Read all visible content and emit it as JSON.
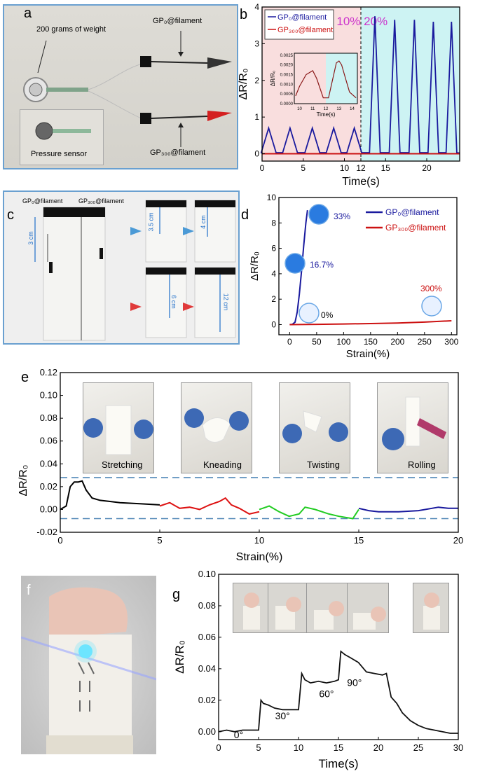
{
  "panel_a": {
    "letter": "a",
    "weight_label": "200 grams of weight",
    "top_label": "GP₀@filament",
    "bottom_label": "GP₃₀₀@filament",
    "inset_label": "Pressure sensor"
  },
  "panel_c": {
    "letter": "c",
    "left_label": "GP₀@filament",
    "right_label": "GP₃₀₀@filament",
    "len_3": "3 cm",
    "len_35": "3.5 cm",
    "len_4": "4 cm",
    "len_6": "6 cm",
    "len_12": "12 cm"
  },
  "panel_f": {
    "letter": "f"
  },
  "chart_data": [
    {
      "id": "b",
      "letter": "b",
      "type": "line",
      "xlabel": "Time(s)",
      "ylabel": "ΔR/R₀",
      "xlim": [
        0,
        24
      ],
      "ylim": [
        -0.2,
        4.0
      ],
      "x_ticks": [
        "0",
        "5",
        "10",
        "12",
        "15",
        "20"
      ],
      "y_ticks": [
        "0",
        "1",
        "2",
        "3",
        "4"
      ],
      "regions": [
        {
          "label": "10%",
          "range": [
            0,
            12
          ],
          "color": "#f9dede"
        },
        {
          "label": "20%",
          "range": [
            12,
            24
          ],
          "color": "#cdf3f3"
        }
      ],
      "peak_times": [
        0.8,
        3.4,
        6.1,
        8.7,
        11.2,
        13.7,
        16.1,
        18.5,
        20.8,
        23.0
      ],
      "peak_values": [
        0.7,
        0.7,
        0.7,
        0.7,
        0.7,
        3.75,
        3.65,
        3.65,
        3.6,
        3.6
      ],
      "series": [
        {
          "name": "GP₀@filament",
          "color": "#1a1a9e"
        },
        {
          "name": "GP₃₀₀@filament",
          "color": "#cc1111"
        }
      ],
      "inset": {
        "xlabel": "Time(s)",
        "ylabel": "ΔR/R₀",
        "x_ticks": [
          "10",
          "11",
          "12",
          "13",
          "14"
        ],
        "y_ticks": [
          "0.0000",
          "0.0005",
          "0.0010",
          "0.0015",
          "0.0020",
          "0.0025"
        ],
        "xlim": [
          9.6,
          14.4
        ],
        "ylim": [
          0,
          0.0026
        ],
        "x": [
          9.7,
          10.0,
          10.5,
          11.0,
          11.3,
          11.8,
          12.2,
          12.5,
          12.8,
          13.0,
          13.2,
          13.5,
          13.8,
          14.3
        ],
        "y": [
          0.0004,
          0.0009,
          0.0015,
          0.0017,
          0.0013,
          0.0003,
          0.0003,
          0.0012,
          0.0021,
          0.0022,
          0.002,
          0.0013,
          0.0006,
          0.0003
        ]
      }
    },
    {
      "id": "d",
      "letter": "d",
      "type": "line",
      "xlabel": "Strain(%)",
      "ylabel": "ΔR/R₀",
      "xlim": [
        -20,
        310
      ],
      "ylim": [
        -0.8,
        10
      ],
      "x_ticks": [
        "0",
        "50",
        "100",
        "150",
        "200",
        "250",
        "300"
      ],
      "y_ticks": [
        "0",
        "2",
        "4",
        "6",
        "8",
        "10"
      ],
      "series": [
        {
          "name": "GP₀@filament",
          "color": "#1a1a9e",
          "x": [
            0,
            5,
            10,
            14,
            18,
            22,
            26,
            30,
            33
          ],
          "y": [
            0,
            0.02,
            0.2,
            1.0,
            2.4,
            4.2,
            6.2,
            8.0,
            9.0
          ]
        },
        {
          "name": "GP₃₀₀@filament",
          "color": "#cc1111",
          "x": [
            0,
            50,
            100,
            150,
            200,
            250,
            300
          ],
          "y": [
            0,
            0.02,
            0.05,
            0.08,
            0.12,
            0.2,
            0.3
          ]
        }
      ],
      "annotations": [
        "33%",
        "16.7%",
        "0%",
        "300%"
      ]
    },
    {
      "id": "e",
      "letter": "e",
      "type": "line",
      "xlabel": "Strain(%)",
      "ylabel": "ΔR/R₀",
      "xlim": [
        0,
        20
      ],
      "ylim": [
        -0.02,
        0.12
      ],
      "x_ticks": [
        "0",
        "5",
        "10",
        "15",
        "20"
      ],
      "y_ticks": [
        "-0.02",
        "0.00",
        "0.02",
        "0.04",
        "0.06",
        "0.08",
        "0.10",
        "0.12"
      ],
      "thresholds": [
        0.028,
        -0.008
      ],
      "series": [
        {
          "name": "Stretching",
          "color": "#000000",
          "x": [
            0,
            0.3,
            0.5,
            0.7,
            0.9,
            1.1,
            1.3,
            1.6,
            2.0,
            2.5,
            3.0,
            4.0,
            5.0
          ],
          "y": [
            0,
            0.003,
            0.02,
            0.024,
            0.024,
            0.025,
            0.017,
            0.01,
            0.008,
            0.007,
            0.006,
            0.005,
            0.004
          ]
        },
        {
          "name": "Kneading",
          "color": "#dd1111",
          "x": [
            5.0,
            5.5,
            6.0,
            6.5,
            7.0,
            7.5,
            8.0,
            8.3,
            8.6,
            9.0,
            9.5,
            10.0
          ],
          "y": [
            0.003,
            0.006,
            0.001,
            0.002,
            0.0,
            0.004,
            0.007,
            0.01,
            0.004,
            0.001,
            -0.004,
            -0.002
          ]
        },
        {
          "name": "Twisting",
          "color": "#22cc22",
          "x": [
            10.0,
            10.5,
            11.0,
            11.5,
            12.0,
            12.3,
            12.8,
            13.5,
            14.0,
            14.7,
            15.0
          ],
          "y": [
            0.0,
            0.003,
            -0.002,
            -0.006,
            -0.004,
            0.002,
            0.0,
            -0.004,
            -0.006,
            -0.008,
            0.0
          ]
        },
        {
          "name": "Rolling",
          "color": "#1a1a9e",
          "x": [
            15.0,
            15.5,
            16.0,
            17.0,
            18.0,
            19.0,
            19.5,
            20.0
          ],
          "y": [
            0.001,
            -0.001,
            -0.002,
            -0.002,
            -0.001,
            0.002,
            0.001,
            0.001
          ]
        }
      ],
      "photo_labels": [
        "Stretching",
        "Kneading",
        "Twisting",
        "Rolling"
      ]
    },
    {
      "id": "g",
      "letter": "g",
      "type": "line",
      "xlabel": "Time(s)",
      "ylabel": "ΔR/R₀",
      "xlim": [
        0,
        30
      ],
      "ylim": [
        -0.005,
        0.1
      ],
      "x_ticks": [
        "0",
        "5",
        "10",
        "15",
        "20",
        "25",
        "30"
      ],
      "y_ticks": [
        "0.00",
        "0.02",
        "0.04",
        "0.06",
        "0.08",
        "0.10"
      ],
      "annotations": [
        "0°",
        "30°",
        "60°",
        "90°"
      ],
      "series": [
        {
          "name": "",
          "color": "#111111",
          "x": [
            0,
            1,
            2,
            3,
            4,
            5.0,
            5.3,
            5.6,
            6.2,
            7,
            8,
            9,
            10.0,
            10.4,
            10.8,
            11.5,
            12.5,
            13.5,
            14.5,
            15.0,
            15.3,
            15.8,
            16.5,
            17.5,
            18.5,
            19.5,
            20.5,
            21.0,
            21.6,
            22.3,
            23.0,
            24.0,
            25.0,
            26.0,
            27.0,
            28.0,
            29.0,
            30.0
          ],
          "y": [
            0.0,
            0.001,
            0.0,
            0.001,
            0.001,
            0.001,
            0.02,
            0.018,
            0.017,
            0.015,
            0.014,
            0.014,
            0.014,
            0.037,
            0.033,
            0.031,
            0.032,
            0.031,
            0.032,
            0.033,
            0.051,
            0.049,
            0.047,
            0.044,
            0.038,
            0.037,
            0.036,
            0.037,
            0.022,
            0.018,
            0.012,
            0.007,
            0.004,
            0.002,
            0.001,
            0.0,
            -0.001,
            -0.001
          ]
        }
      ]
    }
  ]
}
